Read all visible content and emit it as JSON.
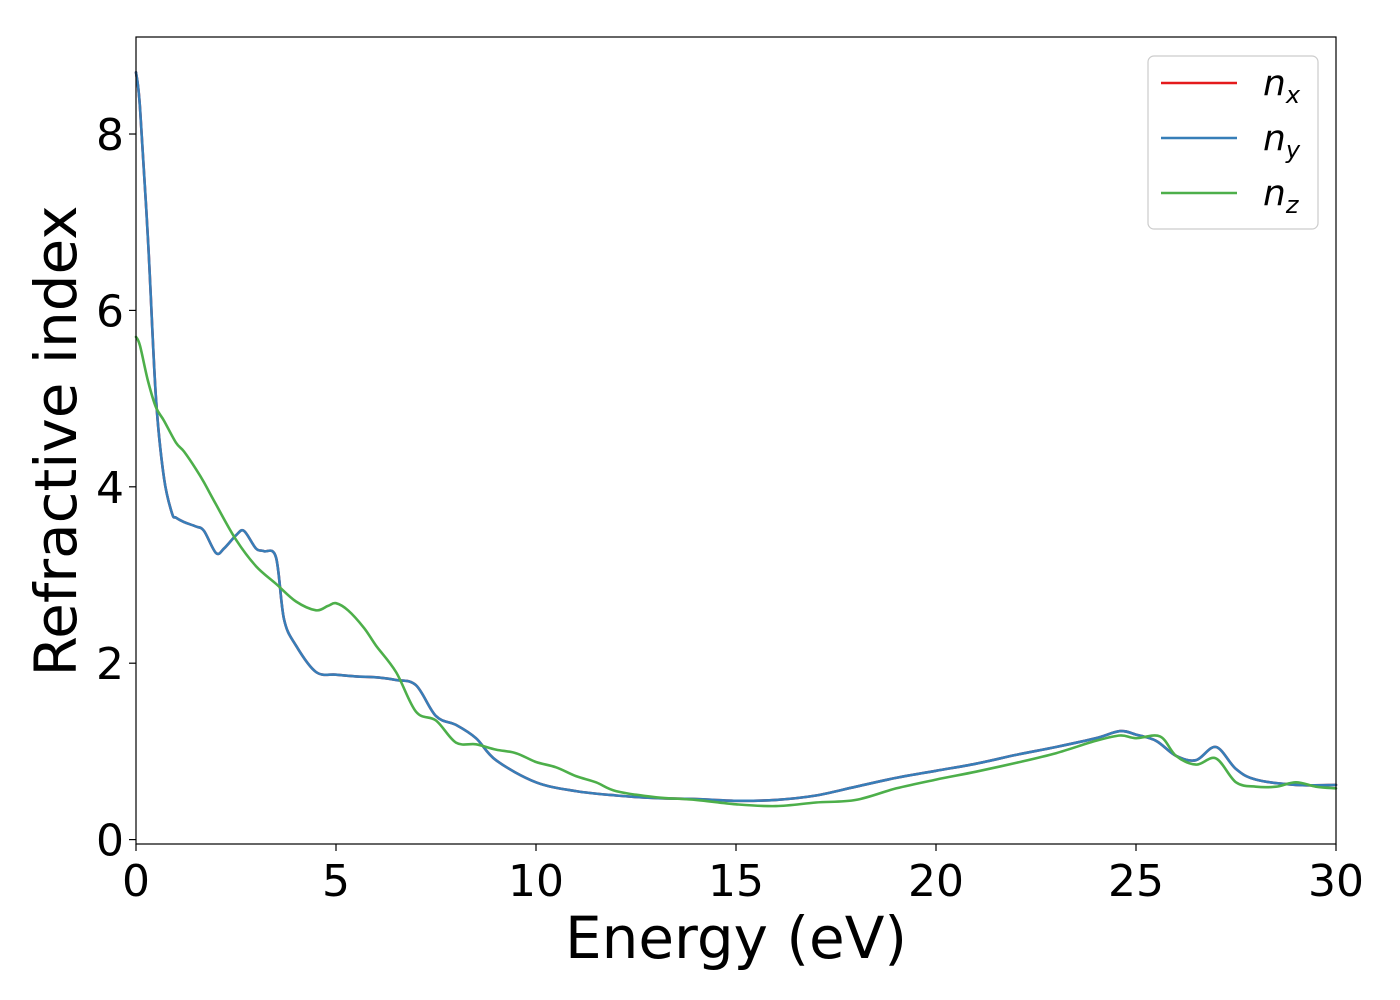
{
  "chart_data": {
    "type": "line",
    "title": "",
    "xlabel": "Energy (eV)",
    "ylabel": "Refractive index",
    "xlim": [
      0,
      30
    ],
    "ylim": [
      -0.05,
      9.1
    ],
    "xticks": [
      0,
      5,
      10,
      15,
      20,
      25,
      30
    ],
    "yticks": [
      0,
      2,
      4,
      6,
      8
    ],
    "grid": false,
    "legend_position": "top-right",
    "series": [
      {
        "name": "n_x",
        "legend_base": "n",
        "legend_sub": "x",
        "color": "#e41a1c",
        "x": [
          0,
          0.1,
          0.3,
          0.5,
          0.7,
          0.9,
          1.0,
          1.2,
          1.5,
          1.7,
          2.0,
          2.2,
          2.5,
          2.7,
          3.0,
          3.2,
          3.5,
          3.7,
          4.0,
          4.5,
          5.0,
          5.5,
          6.0,
          6.5,
          7.0,
          7.5,
          8.0,
          8.5,
          9.0,
          10.0,
          11.0,
          12.0,
          13.0,
          14.0,
          15.0,
          16.0,
          17.0,
          18.0,
          19.0,
          20.0,
          21.0,
          22.0,
          23.0,
          24.0,
          24.6,
          25.0,
          25.5,
          26.0,
          26.5,
          27.0,
          27.5,
          28.0,
          29.0,
          30.0
        ],
        "y": [
          8.7,
          8.3,
          6.8,
          5.0,
          4.1,
          3.7,
          3.65,
          3.6,
          3.55,
          3.5,
          3.25,
          3.3,
          3.45,
          3.5,
          3.3,
          3.27,
          3.2,
          2.5,
          2.2,
          1.9,
          1.87,
          1.85,
          1.84,
          1.81,
          1.75,
          1.4,
          1.3,
          1.15,
          0.9,
          0.65,
          0.55,
          0.5,
          0.47,
          0.46,
          0.44,
          0.45,
          0.5,
          0.6,
          0.7,
          0.78,
          0.86,
          0.96,
          1.05,
          1.15,
          1.23,
          1.19,
          1.12,
          0.95,
          0.9,
          1.05,
          0.8,
          0.68,
          0.62,
          0.62
        ]
      },
      {
        "name": "n_y",
        "legend_base": "n",
        "legend_sub": "y",
        "color": "#377eb8",
        "x": [
          0,
          0.1,
          0.3,
          0.5,
          0.7,
          0.9,
          1.0,
          1.2,
          1.5,
          1.7,
          2.0,
          2.2,
          2.5,
          2.7,
          3.0,
          3.2,
          3.5,
          3.7,
          4.0,
          4.5,
          5.0,
          5.5,
          6.0,
          6.5,
          7.0,
          7.5,
          8.0,
          8.5,
          9.0,
          10.0,
          11.0,
          12.0,
          13.0,
          14.0,
          15.0,
          16.0,
          17.0,
          18.0,
          19.0,
          20.0,
          21.0,
          22.0,
          23.0,
          24.0,
          24.6,
          25.0,
          25.5,
          26.0,
          26.5,
          27.0,
          27.5,
          28.0,
          29.0,
          30.0
        ],
        "y": [
          8.7,
          8.3,
          6.8,
          5.0,
          4.1,
          3.7,
          3.65,
          3.6,
          3.55,
          3.5,
          3.25,
          3.3,
          3.45,
          3.5,
          3.3,
          3.27,
          3.2,
          2.5,
          2.2,
          1.9,
          1.87,
          1.85,
          1.84,
          1.81,
          1.75,
          1.4,
          1.3,
          1.15,
          0.9,
          0.65,
          0.55,
          0.5,
          0.47,
          0.46,
          0.44,
          0.45,
          0.5,
          0.6,
          0.7,
          0.78,
          0.86,
          0.96,
          1.05,
          1.15,
          1.23,
          1.19,
          1.12,
          0.95,
          0.9,
          1.05,
          0.8,
          0.68,
          0.62,
          0.62
        ]
      },
      {
        "name": "n_z",
        "legend_base": "n",
        "legend_sub": "z",
        "color": "#4daf4a",
        "x": [
          0,
          0.1,
          0.3,
          0.5,
          0.7,
          1.0,
          1.2,
          1.5,
          1.7,
          2.0,
          2.5,
          3.0,
          3.5,
          4.0,
          4.5,
          4.8,
          5.0,
          5.3,
          5.7,
          6.0,
          6.5,
          7.0,
          7.5,
          8.0,
          8.5,
          9.0,
          9.5,
          10.0,
          10.5,
          11.0,
          11.5,
          12.0,
          13.0,
          14.0,
          15.0,
          16.0,
          17.0,
          18.0,
          19.0,
          20.0,
          21.0,
          22.0,
          23.0,
          24.0,
          24.6,
          25.0,
          25.6,
          26.0,
          26.5,
          27.0,
          27.5,
          28.0,
          28.5,
          29.0,
          29.5,
          30.0
        ],
        "y": [
          5.7,
          5.6,
          5.2,
          4.9,
          4.75,
          4.5,
          4.4,
          4.2,
          4.05,
          3.8,
          3.4,
          3.1,
          2.9,
          2.7,
          2.6,
          2.65,
          2.68,
          2.6,
          2.4,
          2.2,
          1.9,
          1.45,
          1.35,
          1.1,
          1.08,
          1.02,
          0.98,
          0.88,
          0.82,
          0.72,
          0.65,
          0.55,
          0.48,
          0.45,
          0.4,
          0.38,
          0.42,
          0.45,
          0.58,
          0.68,
          0.77,
          0.87,
          0.98,
          1.12,
          1.18,
          1.15,
          1.17,
          0.95,
          0.85,
          0.92,
          0.65,
          0.6,
          0.6,
          0.65,
          0.6,
          0.58
        ]
      }
    ]
  }
}
